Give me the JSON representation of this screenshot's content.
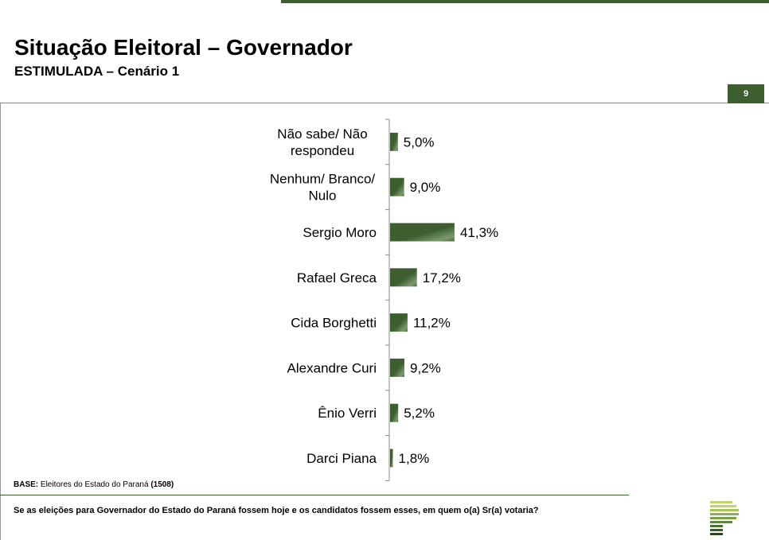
{
  "header": {
    "title": "Situação Eleitoral – Governador",
    "subtitle": "ESTIMULADA – Cenário 1",
    "page_number": "9"
  },
  "chart_data": {
    "type": "bar",
    "orientation": "horizontal",
    "categories": [
      [
        "Não sabe/ Não",
        "respondeu"
      ],
      [
        "Nenhum/ Branco/",
        "Nulo"
      ],
      [
        "Sergio Moro"
      ],
      [
        "Rafael Greca"
      ],
      [
        "Cida Borghetti"
      ],
      [
        "Alexandre Curi"
      ],
      [
        "Ênio Verri"
      ],
      [
        "Darci Piana"
      ]
    ],
    "values": [
      5.0,
      9.0,
      41.3,
      17.2,
      11.2,
      9.2,
      5.2,
      1.8
    ],
    "value_labels": [
      "5,0%",
      "9,0%",
      "41,3%",
      "17,2%",
      "11,2%",
      "9,2%",
      "5,2%",
      "1,8%"
    ],
    "unit": "%",
    "bar_color": "#3d5f30",
    "grid": false
  },
  "footer": {
    "base_label": "BASE:",
    "base_text": " Eleitores do Estado do Paraná ",
    "base_count": "(1508)",
    "question": "Se as eleições para Governador do Estado do Paraná fossem hoje e os candidatos fossem esses, em quem o(a) Sr(a) votaria?"
  },
  "colors": {
    "accent": "#3d5f30",
    "logo_light": "#bcd46a",
    "logo_mid": "#5e8a3a"
  }
}
